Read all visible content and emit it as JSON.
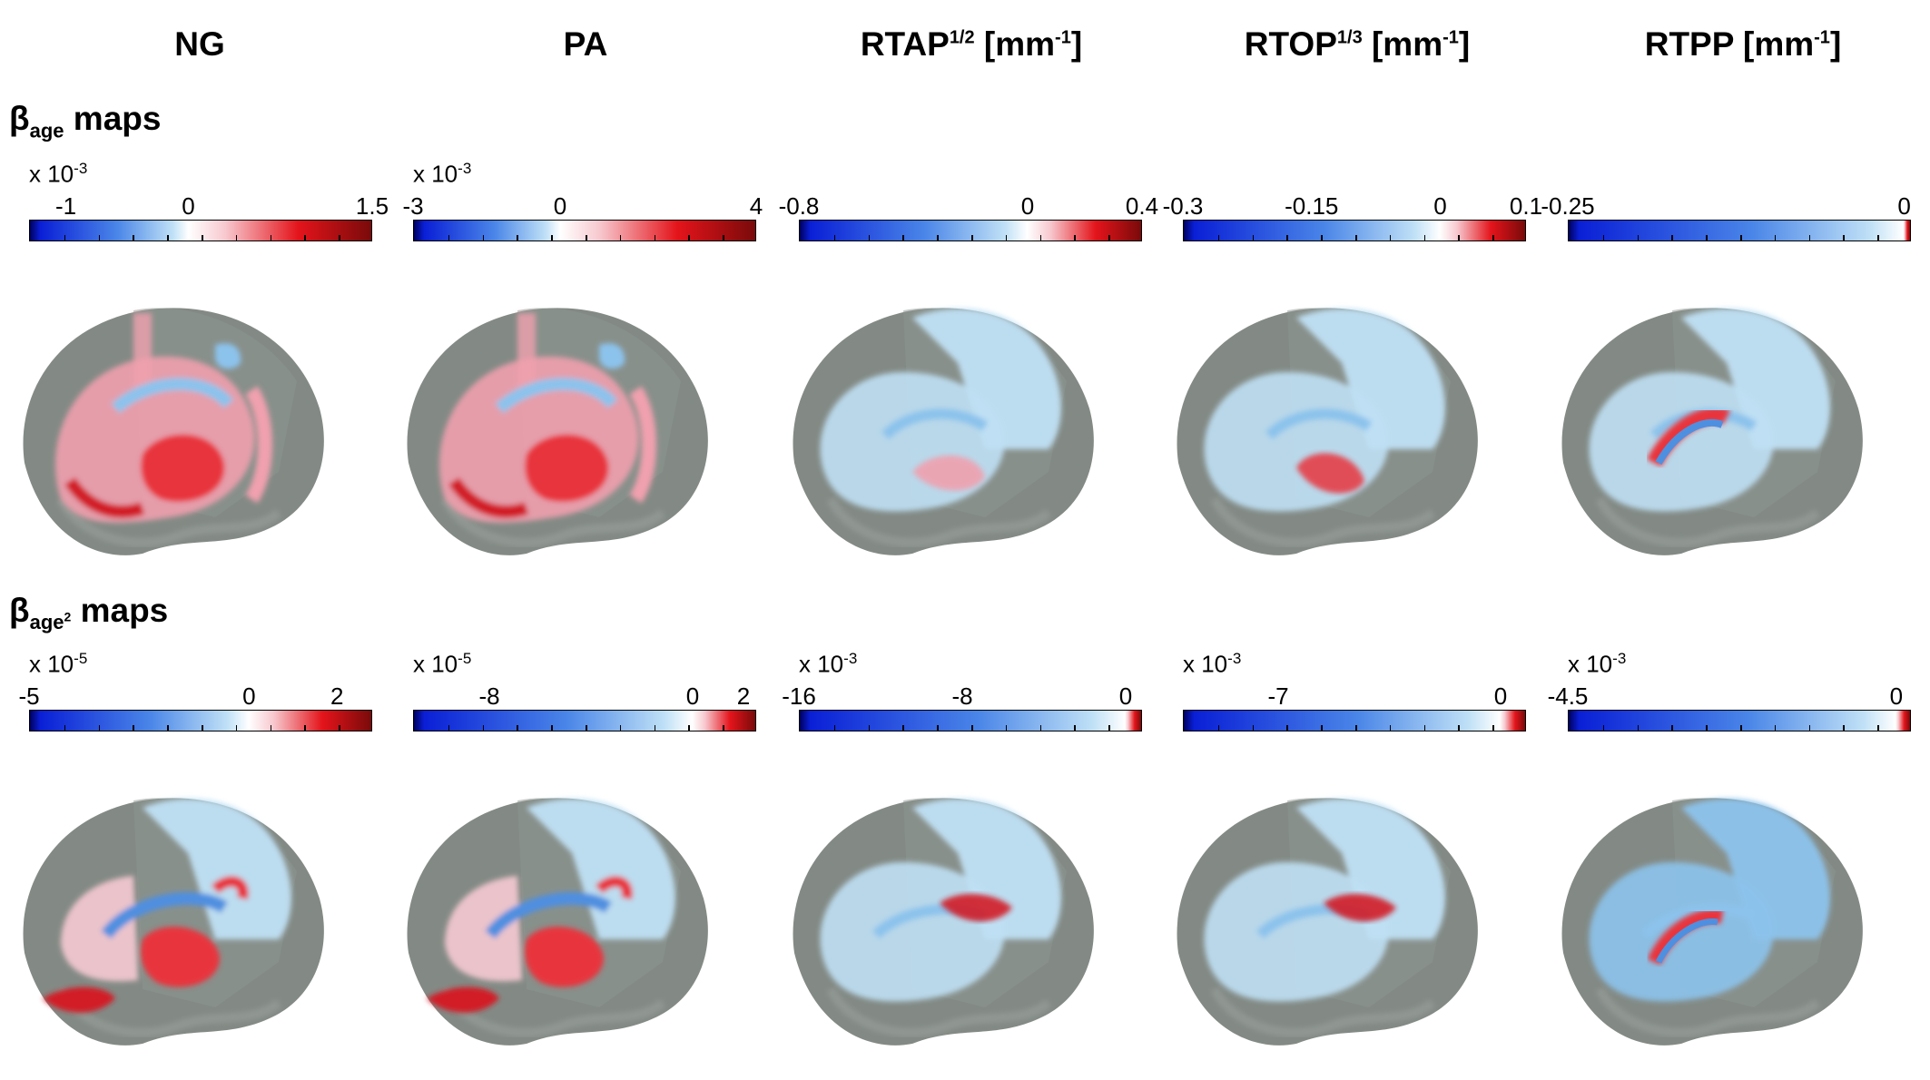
{
  "columns": [
    {
      "label": "NG",
      "sup": "",
      "unit": ""
    },
    {
      "label": "PA",
      "sup": "",
      "unit": ""
    },
    {
      "label": "RTAP",
      "sup": "1/2",
      "unit": " [mm-1]"
    },
    {
      "label": "RTOP",
      "sup": "1/3",
      "unit": " [mm-1]"
    },
    {
      "label": "RTPP",
      "sup": "",
      "unit": " [mm-1]"
    }
  ],
  "rows": [
    {
      "title_base": "β",
      "title_sub": "age",
      "title_sub_sup": "",
      "title_suffix": " maps",
      "colorbars": [
        {
          "scale": "x 10-3",
          "ticks": [
            "-1",
            "0",
            "1.5"
          ],
          "min": -1.3,
          "max": 1.5,
          "tick_values": [
            -1,
            0,
            1.5
          ]
        },
        {
          "scale": "x 10-3",
          "ticks": [
            "-3",
            "0",
            "4"
          ],
          "min": -3,
          "max": 4,
          "tick_values": [
            -3,
            0,
            4
          ]
        },
        {
          "scale": "",
          "ticks": [
            "-0.8",
            "0",
            "0.4"
          ],
          "min": -0.8,
          "max": 0.4,
          "tick_values": [
            -0.8,
            0,
            0.4
          ]
        },
        {
          "scale": "",
          "ticks": [
            "-0.3",
            "-0.15",
            "0",
            "0.1"
          ],
          "min": -0.3,
          "max": 0.1,
          "tick_values": [
            -0.3,
            -0.15,
            0,
            0.1
          ]
        },
        {
          "scale": "",
          "ticks": [
            "-0.25",
            "0"
          ],
          "min": -0.25,
          "max": 0.005,
          "tick_values": [
            -0.25,
            0
          ]
        }
      ]
    },
    {
      "title_base": "β",
      "title_sub": "age",
      "title_sub_sup": "2",
      "title_suffix": " maps",
      "colorbars": [
        {
          "scale": "x 10-5",
          "ticks": [
            "-5",
            "0",
            "2"
          ],
          "min": -5,
          "max": 2.8,
          "tick_values": [
            -5,
            0,
            2
          ]
        },
        {
          "scale": "x 10-5",
          "ticks": [
            "-8",
            "0",
            "2"
          ],
          "min": -11,
          "max": 2.5,
          "tick_values": [
            -8,
            0,
            2
          ]
        },
        {
          "scale": "x 10-3",
          "ticks": [
            "-16",
            "-8",
            "0"
          ],
          "min": -16,
          "max": 0.8,
          "tick_values": [
            -16,
            -8,
            0
          ]
        },
        {
          "scale": "x 10-3",
          "ticks": [
            "-7",
            "0"
          ],
          "min": -10,
          "max": 0.8,
          "tick_values": [
            -7,
            0
          ]
        },
        {
          "scale": "x 10-3",
          "ticks": [
            "-4.5",
            "0"
          ],
          "min": -4.5,
          "max": 0.2,
          "tick_values": [
            -4.5,
            0
          ]
        }
      ]
    }
  ],
  "colors": {
    "negative": "#0a1fd6",
    "neutral": "#ffffff",
    "positive": "#e4141b",
    "dark_positive": "#7a0a0a",
    "brain": "#6d7570"
  },
  "brain_maps": [
    [
      "red",
      "red",
      "light-blue",
      "light-blue",
      "light-blue"
    ],
    [
      "mixed",
      "mixed",
      "light-blue",
      "light-blue",
      "light-blue"
    ]
  ]
}
